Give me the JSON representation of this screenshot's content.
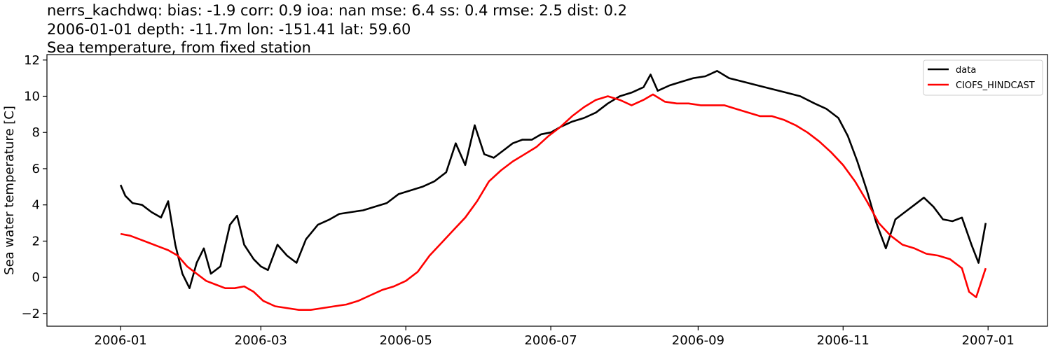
{
  "title_lines": [
    "nerrs_kachdwq: bias: -1.9  corr: 0.9  ioa: nan  mse: 6.4  ss: 0.4  rmse: 2.5  dist: 0.2",
    "2006-01-01 depth: -11.7m lon: -151.41 lat: 59.60",
    "Sea temperature, from fixed station"
  ],
  "chart_data": {
    "type": "line",
    "xlabel": "",
    "ylabel": "Sea water temperature [C]",
    "xlim": [
      "2005-12-01",
      "2007-01-26"
    ],
    "ylim": [
      -2.7,
      12.3
    ],
    "x_ticks": [
      "2006-01",
      "2006-03",
      "2006-05",
      "2006-07",
      "2006-09",
      "2006-11",
      "2007-01"
    ],
    "y_ticks": [
      -2,
      0,
      2,
      4,
      6,
      8,
      10,
      12
    ],
    "grid": false,
    "legend_position": "top-right",
    "series": [
      {
        "name": "data",
        "color": "#000000",
        "x": [
          "2006-01-01",
          "2006-01-03",
          "2006-01-06",
          "2006-01-10",
          "2006-01-14",
          "2006-01-18",
          "2006-01-21",
          "2006-01-24",
          "2006-01-27",
          "2006-01-30",
          "2006-02-02",
          "2006-02-05",
          "2006-02-08",
          "2006-02-12",
          "2006-02-16",
          "2006-02-19",
          "2006-02-22",
          "2006-02-26",
          "2006-03-01",
          "2006-03-04",
          "2006-03-08",
          "2006-03-12",
          "2006-03-16",
          "2006-03-20",
          "2006-03-25",
          "2006-03-30",
          "2006-04-03",
          "2006-04-08",
          "2006-04-13",
          "2006-04-18",
          "2006-04-23",
          "2006-04-28",
          "2006-05-03",
          "2006-05-08",
          "2006-05-13",
          "2006-05-18",
          "2006-05-22",
          "2006-05-26",
          "2006-05-30",
          "2006-06-03",
          "2006-06-07",
          "2006-06-11",
          "2006-06-15",
          "2006-06-19",
          "2006-06-23",
          "2006-06-27",
          "2006-07-01",
          "2006-07-05",
          "2006-07-10",
          "2006-07-15",
          "2006-07-20",
          "2006-07-25",
          "2006-07-30",
          "2006-08-04",
          "2006-08-09",
          "2006-08-12",
          "2006-08-15",
          "2006-08-20",
          "2006-08-25",
          "2006-08-30",
          "2006-09-04",
          "2006-09-09",
          "2006-09-14",
          "2006-09-20",
          "2006-09-26",
          "2006-10-02",
          "2006-10-08",
          "2006-10-14",
          "2006-10-20",
          "2006-10-25",
          "2006-10-30",
          "2006-11-03",
          "2006-11-07",
          "2006-11-11",
          "2006-11-15",
          "2006-11-19",
          "2006-11-23",
          "2006-11-27",
          "2006-12-01",
          "2006-12-05",
          "2006-12-09",
          "2006-12-13",
          "2006-12-17",
          "2006-12-21",
          "2006-12-25",
          "2006-12-28",
          "2006-12-31"
        ],
        "y": [
          5.1,
          4.5,
          4.1,
          4.0,
          3.6,
          3.3,
          4.2,
          1.8,
          0.2,
          -0.6,
          0.8,
          1.6,
          0.2,
          0.6,
          2.9,
          3.4,
          1.8,
          1.0,
          0.6,
          0.4,
          1.8,
          1.2,
          0.8,
          2.1,
          2.9,
          3.2,
          3.5,
          3.6,
          3.7,
          3.9,
          4.1,
          4.6,
          4.8,
          5.0,
          5.3,
          5.8,
          7.4,
          6.2,
          8.4,
          6.8,
          6.6,
          7.0,
          7.4,
          7.6,
          7.6,
          7.9,
          8.0,
          8.3,
          8.6,
          8.8,
          9.1,
          9.6,
          10.0,
          10.2,
          10.5,
          11.2,
          10.3,
          10.6,
          10.8,
          11.0,
          11.1,
          11.4,
          11.0,
          10.8,
          10.6,
          10.4,
          10.2,
          10.0,
          9.6,
          9.3,
          8.8,
          7.8,
          6.4,
          4.8,
          3.0,
          1.6,
          3.2,
          3.6,
          4.0,
          4.4,
          3.9,
          3.2,
          3.1,
          3.3,
          1.8,
          0.8,
          3.0
        ]
      },
      {
        "name": "CIOFS_HINDCAST",
        "color": "#ff0000",
        "x": [
          "2006-01-01",
          "2006-01-05",
          "2006-01-09",
          "2006-01-13",
          "2006-01-17",
          "2006-01-21",
          "2006-01-25",
          "2006-01-29",
          "2006-02-02",
          "2006-02-06",
          "2006-02-10",
          "2006-02-14",
          "2006-02-18",
          "2006-02-22",
          "2006-02-26",
          "2006-03-02",
          "2006-03-07",
          "2006-03-12",
          "2006-03-17",
          "2006-03-22",
          "2006-03-27",
          "2006-04-01",
          "2006-04-06",
          "2006-04-11",
          "2006-04-16",
          "2006-04-21",
          "2006-04-26",
          "2006-05-01",
          "2006-05-06",
          "2006-05-11",
          "2006-05-16",
          "2006-05-21",
          "2006-05-26",
          "2006-05-31",
          "2006-06-05",
          "2006-06-10",
          "2006-06-15",
          "2006-06-20",
          "2006-06-25",
          "2006-06-30",
          "2006-07-05",
          "2006-07-10",
          "2006-07-15",
          "2006-07-20",
          "2006-07-25",
          "2006-07-30",
          "2006-08-04",
          "2006-08-09",
          "2006-08-13",
          "2006-08-18",
          "2006-08-23",
          "2006-08-28",
          "2006-09-02",
          "2006-09-07",
          "2006-09-12",
          "2006-09-17",
          "2006-09-22",
          "2006-09-27",
          "2006-10-02",
          "2006-10-07",
          "2006-10-12",
          "2006-10-17",
          "2006-10-22",
          "2006-10-27",
          "2006-11-01",
          "2006-11-06",
          "2006-11-11",
          "2006-11-16",
          "2006-11-21",
          "2006-11-26",
          "2006-12-01",
          "2006-12-06",
          "2006-12-11",
          "2006-12-16",
          "2006-12-21",
          "2006-12-24",
          "2006-12-27",
          "2006-12-31"
        ],
        "y": [
          2.4,
          2.3,
          2.1,
          1.9,
          1.7,
          1.5,
          1.2,
          0.6,
          0.2,
          -0.2,
          -0.4,
          -0.6,
          -0.6,
          -0.5,
          -0.8,
          -1.3,
          -1.6,
          -1.7,
          -1.8,
          -1.8,
          -1.7,
          -1.6,
          -1.5,
          -1.3,
          -1.0,
          -0.7,
          -0.5,
          -0.2,
          0.3,
          1.2,
          1.9,
          2.6,
          3.3,
          4.2,
          5.3,
          5.9,
          6.4,
          6.8,
          7.2,
          7.8,
          8.3,
          8.9,
          9.4,
          9.8,
          10.0,
          9.8,
          9.5,
          9.8,
          10.1,
          9.7,
          9.6,
          9.6,
          9.5,
          9.5,
          9.5,
          9.3,
          9.1,
          8.9,
          8.9,
          8.7,
          8.4,
          8.0,
          7.5,
          6.9,
          6.2,
          5.3,
          4.2,
          3.0,
          2.3,
          1.8,
          1.6,
          1.3,
          1.2,
          1.0,
          0.5,
          -0.8,
          -1.1,
          0.5
        ]
      }
    ]
  }
}
